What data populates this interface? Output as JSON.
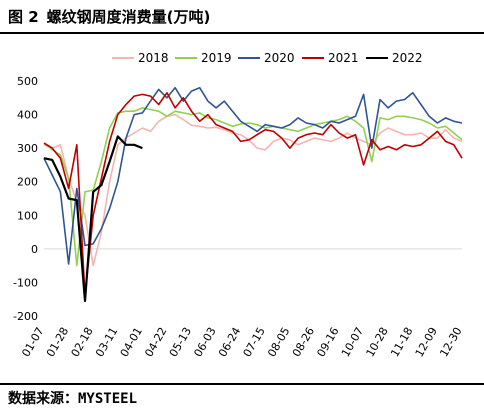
{
  "figure": {
    "label": "图 2",
    "title": "螺纹钢周度消费量(万吨)",
    "source": "数据来源：MYSTEEL"
  },
  "chart_data": {
    "type": "line",
    "title": "螺纹钢周度消费量(万吨)",
    "xlabel": "",
    "ylabel": "",
    "ylim": [
      -200,
      500
    ],
    "yticks": [
      -200,
      -100,
      0,
      100,
      200,
      300,
      400,
      500
    ],
    "x_count": 52,
    "xtick_labels": [
      "01-07",
      "01-28",
      "02-18",
      "03-11",
      "04-01",
      "04-22",
      "05-13",
      "06-03",
      "06-24",
      "07-15",
      "08-05",
      "08-26",
      "09-16",
      "10-07",
      "10-28",
      "11-18",
      "12-09",
      "12-30"
    ],
    "grid": false,
    "legend_position": "top",
    "series": [
      {
        "name": "2018",
        "color": "#f4b5b0",
        "values": [
          310,
          300,
          310,
          210,
          140,
          100,
          -50,
          50,
          200,
          310,
          330,
          345,
          360,
          350,
          380,
          395,
          400,
          385,
          368,
          365,
          360,
          362,
          355,
          345,
          340,
          325,
          300,
          295,
          320,
          330,
          325,
          310,
          320,
          330,
          325,
          320,
          330,
          345,
          330,
          320,
          310,
          345,
          360,
          350,
          340,
          340,
          345,
          330,
          330,
          355,
          330,
          320
        ]
      },
      {
        "name": "2019",
        "color": "#92d050",
        "values": [
          315,
          295,
          280,
          210,
          -50,
          170,
          175,
          260,
          360,
          405,
          410,
          410,
          420,
          415,
          410,
          395,
          410,
          405,
          400,
          405,
          390,
          385,
          375,
          365,
          372,
          375,
          370,
          360,
          365,
          360,
          355,
          350,
          360,
          370,
          375,
          380,
          385,
          395,
          380,
          360,
          260,
          390,
          385,
          395,
          395,
          390,
          385,
          375,
          360,
          365,
          345,
          325
        ]
      },
      {
        "name": "2020",
        "color": "#2f5597",
        "values": [
          270,
          220,
          170,
          -45,
          180,
          10,
          15,
          60,
          120,
          200,
          330,
          400,
          405,
          440,
          475,
          450,
          480,
          440,
          470,
          480,
          440,
          420,
          440,
          410,
          380,
          365,
          350,
          370,
          365,
          360,
          370,
          390,
          375,
          370,
          360,
          380,
          375,
          385,
          395,
          460,
          300,
          445,
          420,
          440,
          445,
          465,
          430,
          395,
          375,
          390,
          380,
          375
        ]
      },
      {
        "name": "2021",
        "color": "#c00000",
        "values": [
          315,
          300,
          270,
          180,
          310,
          -140,
          100,
          210,
          320,
          400,
          430,
          455,
          460,
          455,
          430,
          465,
          420,
          450,
          410,
          380,
          400,
          370,
          360,
          350,
          320,
          325,
          340,
          355,
          350,
          330,
          300,
          330,
          340,
          345,
          340,
          370,
          345,
          330,
          340,
          250,
          325,
          295,
          305,
          295,
          310,
          305,
          310,
          330,
          350,
          320,
          310,
          270
        ]
      },
      {
        "name": "2022",
        "color": "#000000",
        "values": [
          270,
          265,
          215,
          150,
          145,
          -155,
          170,
          190,
          260,
          335,
          310,
          310,
          300
        ]
      }
    ]
  }
}
